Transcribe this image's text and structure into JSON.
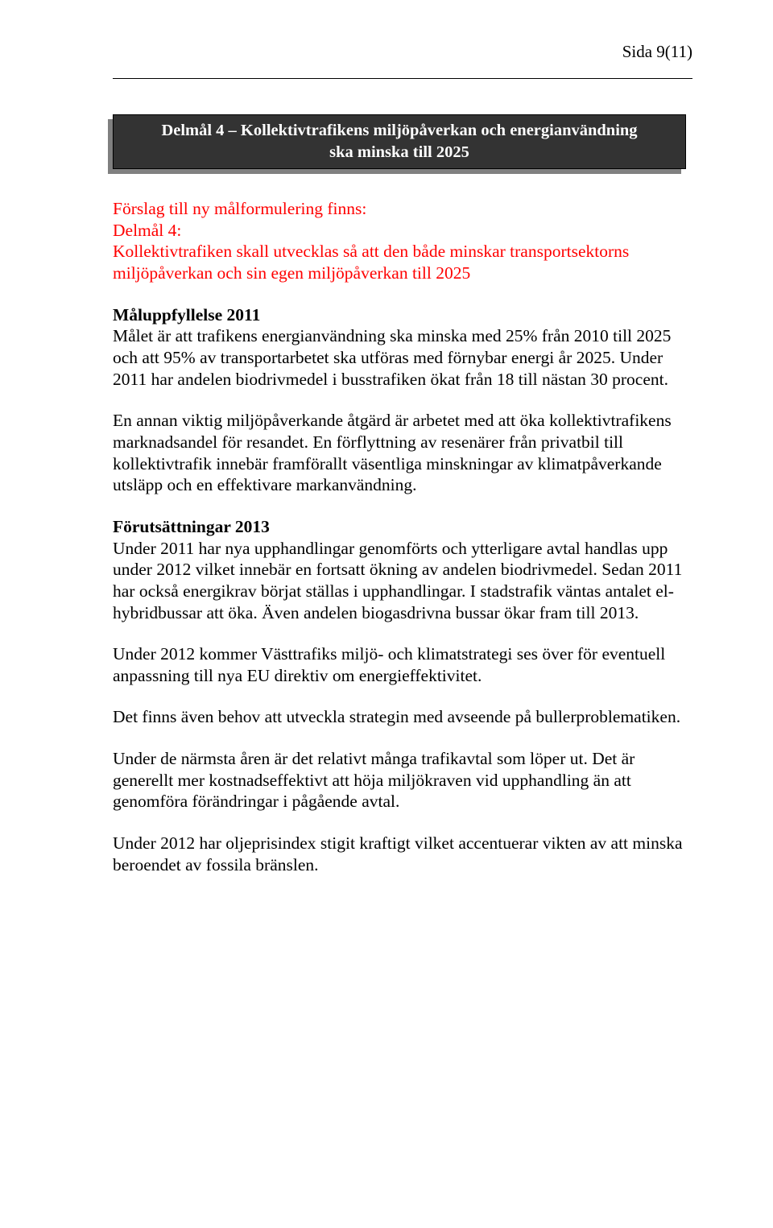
{
  "header": {
    "page_label": "Sida 9(11)"
  },
  "banner": {
    "line1": "Delmål 4 – Kollektivtrafikens miljöpåverkan och energianvändning",
    "line2": "ska minska till 2025"
  },
  "proposal": {
    "intro": "Förslag till ny målformulering finns:",
    "label": "Delmål 4:",
    "text": "Kollektivtrafiken skall utvecklas så att den både minskar transportsektorns miljöpåverkan och sin egen miljöpåverkan till 2025"
  },
  "fulfilment": {
    "heading": "Måluppfyllelse 2011",
    "p1": "Målet är att trafikens energianvändning ska minska med 25% från 2010 till 2025 och att 95% av transportarbetet ska utföras med förnybar energi år 2025. Under 2011 har andelen biodrivmedel i busstrafiken ökat från 18 till nästan 30 procent.",
    "p2": "En annan viktig miljöpåverkande åtgärd är arbetet med att öka kollektivtrafikens marknadsandel för resandet. En förflyttning av resenärer från privatbil till kollektivtrafik innebär framförallt väsentliga minskningar av klimatpåverkande utsläpp och en effektivare markanvändning."
  },
  "conditions": {
    "heading": "Förutsättningar 2013",
    "p1": "Under 2011 har nya upphandlingar genomförts och ytterligare avtal handlas upp under 2012 vilket innebär en fortsatt ökning av andelen biodrivmedel. Sedan 2011 har också energikrav börjat ställas i upphandlingar. I stadstrafik väntas antalet el-hybridbussar att öka. Även andelen biogasdrivna bussar ökar fram till 2013.",
    "p2": "Under 2012 kommer Västtrafiks miljö- och klimatstrategi ses över för eventuell anpassning till nya EU direktiv om energieffektivitet.",
    "p3": "Det finns även behov att utveckla strategin med avseende på bullerproblematiken.",
    "p4": "Under de närmsta åren är det relativt många trafikavtal som löper ut. Det är generellt mer kostnadseffektivt att höja miljökraven vid upphandling än att genomföra förändringar i pågående avtal.",
    "p5": "Under 2012 har oljeprisindex stigit kraftigt vilket accentuerar vikten av att minska beroendet av fossila bränslen."
  },
  "colors": {
    "text": "#000000",
    "red": "#ff0000",
    "banner_bg": "#333333",
    "banner_shadow": "#808080",
    "banner_text": "#ffffff",
    "page_bg": "#ffffff"
  }
}
